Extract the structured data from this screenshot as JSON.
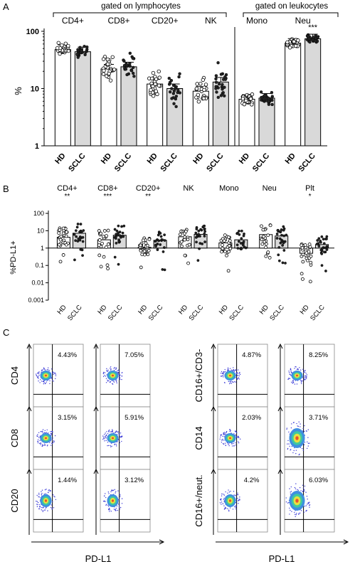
{
  "panel_labels": {
    "a": "A",
    "b": "B",
    "c": "C"
  },
  "chart_data": [
    {
      "type": "bar",
      "id": "panel-a",
      "ylabel": "%",
      "yscale": "log",
      "ylim": [
        1,
        100
      ],
      "yticks": [
        "1",
        "10",
        "100"
      ],
      "group_headers": [
        {
          "label": "gated on lymphocytes"
        },
        {
          "label": "gated on leukocytes"
        }
      ],
      "categories": [
        "CD4+",
        "CD8+",
        "CD20+",
        "NK",
        "Mono",
        "Neu"
      ],
      "significance": [
        "",
        "",
        "",
        "",
        "",
        "***"
      ],
      "conditions": [
        "HD",
        "SCLC"
      ],
      "series": [
        {
          "name": "HD",
          "values": [
            48,
            22,
            12,
            9,
            6.5,
            62
          ]
        },
        {
          "name": "SCLC",
          "values": [
            44,
            24,
            10,
            13,
            6.8,
            74
          ]
        }
      ]
    },
    {
      "type": "bar",
      "id": "panel-b",
      "ylabel": "%PD-L1+",
      "yscale": "log",
      "ylim": [
        0.001,
        100
      ],
      "yticks": [
        "100",
        "10",
        "1",
        "0.1",
        "0.01",
        "0.001"
      ],
      "categories": [
        "CD4+",
        "CD8+",
        "CD20+",
        "NK",
        "Mono",
        "Neu",
        "Plt"
      ],
      "significance": [
        "**",
        "***",
        "**",
        "",
        "",
        "",
        "*"
      ],
      "conditions": [
        "HD",
        "SCLC"
      ],
      "series": [
        {
          "name": "HD",
          "values": [
            4.2,
            3.0,
            1.1,
            4.5,
            2.0,
            6.0,
            0.5
          ]
        },
        {
          "name": "SCLC",
          "values": [
            7.2,
            5.5,
            2.8,
            6.2,
            3.0,
            5.0,
            1.6
          ]
        }
      ]
    }
  ],
  "flow_panel": {
    "x_axis_label": "PD-L1",
    "left_rows": [
      {
        "ylabel": "CD4",
        "hd_pct": "4.43%",
        "sclc_pct": "7.05%"
      },
      {
        "ylabel": "CD8",
        "hd_pct": "3.15%",
        "sclc_pct": "5.91%"
      },
      {
        "ylabel": "CD20",
        "hd_pct": "1.44%",
        "sclc_pct": "3.12%"
      }
    ],
    "right_rows": [
      {
        "ylabel": "CD16+/CD3-",
        "hd_pct": "4.87%",
        "sclc_pct": "8.25%"
      },
      {
        "ylabel": "CD14",
        "hd_pct": "2.03%",
        "sclc_pct": "3.71%"
      },
      {
        "ylabel": "CD16+/neut.",
        "hd_pct": "4.2%",
        "sclc_pct": "6.03%"
      }
    ]
  }
}
